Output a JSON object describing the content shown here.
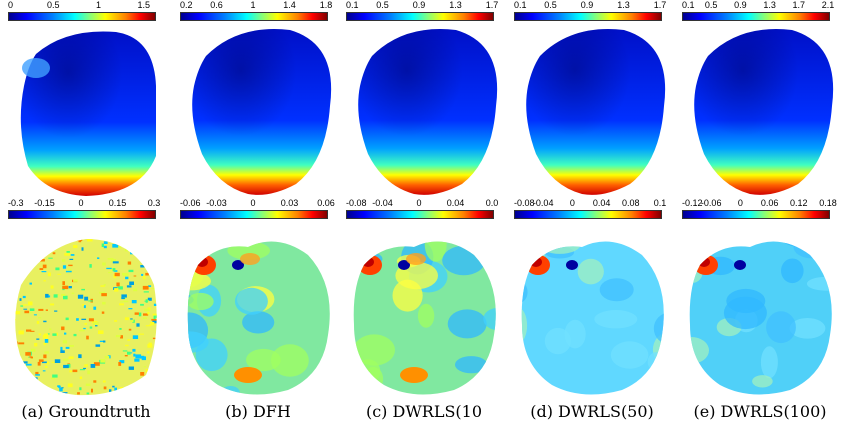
{
  "panels": [
    {
      "caption": "(a) Groundtruth",
      "top_ticks": [
        "0",
        "0.5",
        "1",
        "1.5"
      ],
      "bottom_ticks": [
        "-0.3",
        "-0.15",
        "0",
        "0.15",
        "0.3"
      ]
    },
    {
      "caption": "(b) DFH",
      "top_ticks": [
        "0.2",
        "0.6",
        "1",
        "1.4",
        "1.8"
      ],
      "bottom_ticks": [
        "-0.06",
        "-0.03",
        "0",
        "0.03",
        "0.06"
      ]
    },
    {
      "caption": "(c) DWRLS(10",
      "top_ticks": [
        "0.1",
        "0.5",
        "0.9",
        "1.3",
        "1.7"
      ],
      "bottom_ticks": [
        "-0.08",
        "-0.04",
        "0",
        "0.04",
        "0.0"
      ]
    },
    {
      "caption": "(d) DWRLS(50)",
      "top_ticks": [
        "0.1",
        "0.5",
        "0.9",
        "1.3",
        "1.7"
      ],
      "bottom_ticks": [
        "-0.08",
        "-0.04",
        "0",
        "0.04",
        "0.08",
        "0.1"
      ]
    },
    {
      "caption": "(e) DWRLS(100)",
      "top_ticks": [
        "0.1",
        "0.5",
        "0.9",
        "1.3",
        "1.7",
        "2.1"
      ],
      "bottom_ticks": [
        "-0.12",
        "-0.06",
        "0",
        "0.06",
        "0.12",
        "0.18"
      ]
    }
  ],
  "colormap": [
    "#00008f",
    "#0000ff",
    "#0080ff",
    "#00ffff",
    "#ffff00",
    "#ff8000",
    "#ff0000",
    "#800000"
  ]
}
